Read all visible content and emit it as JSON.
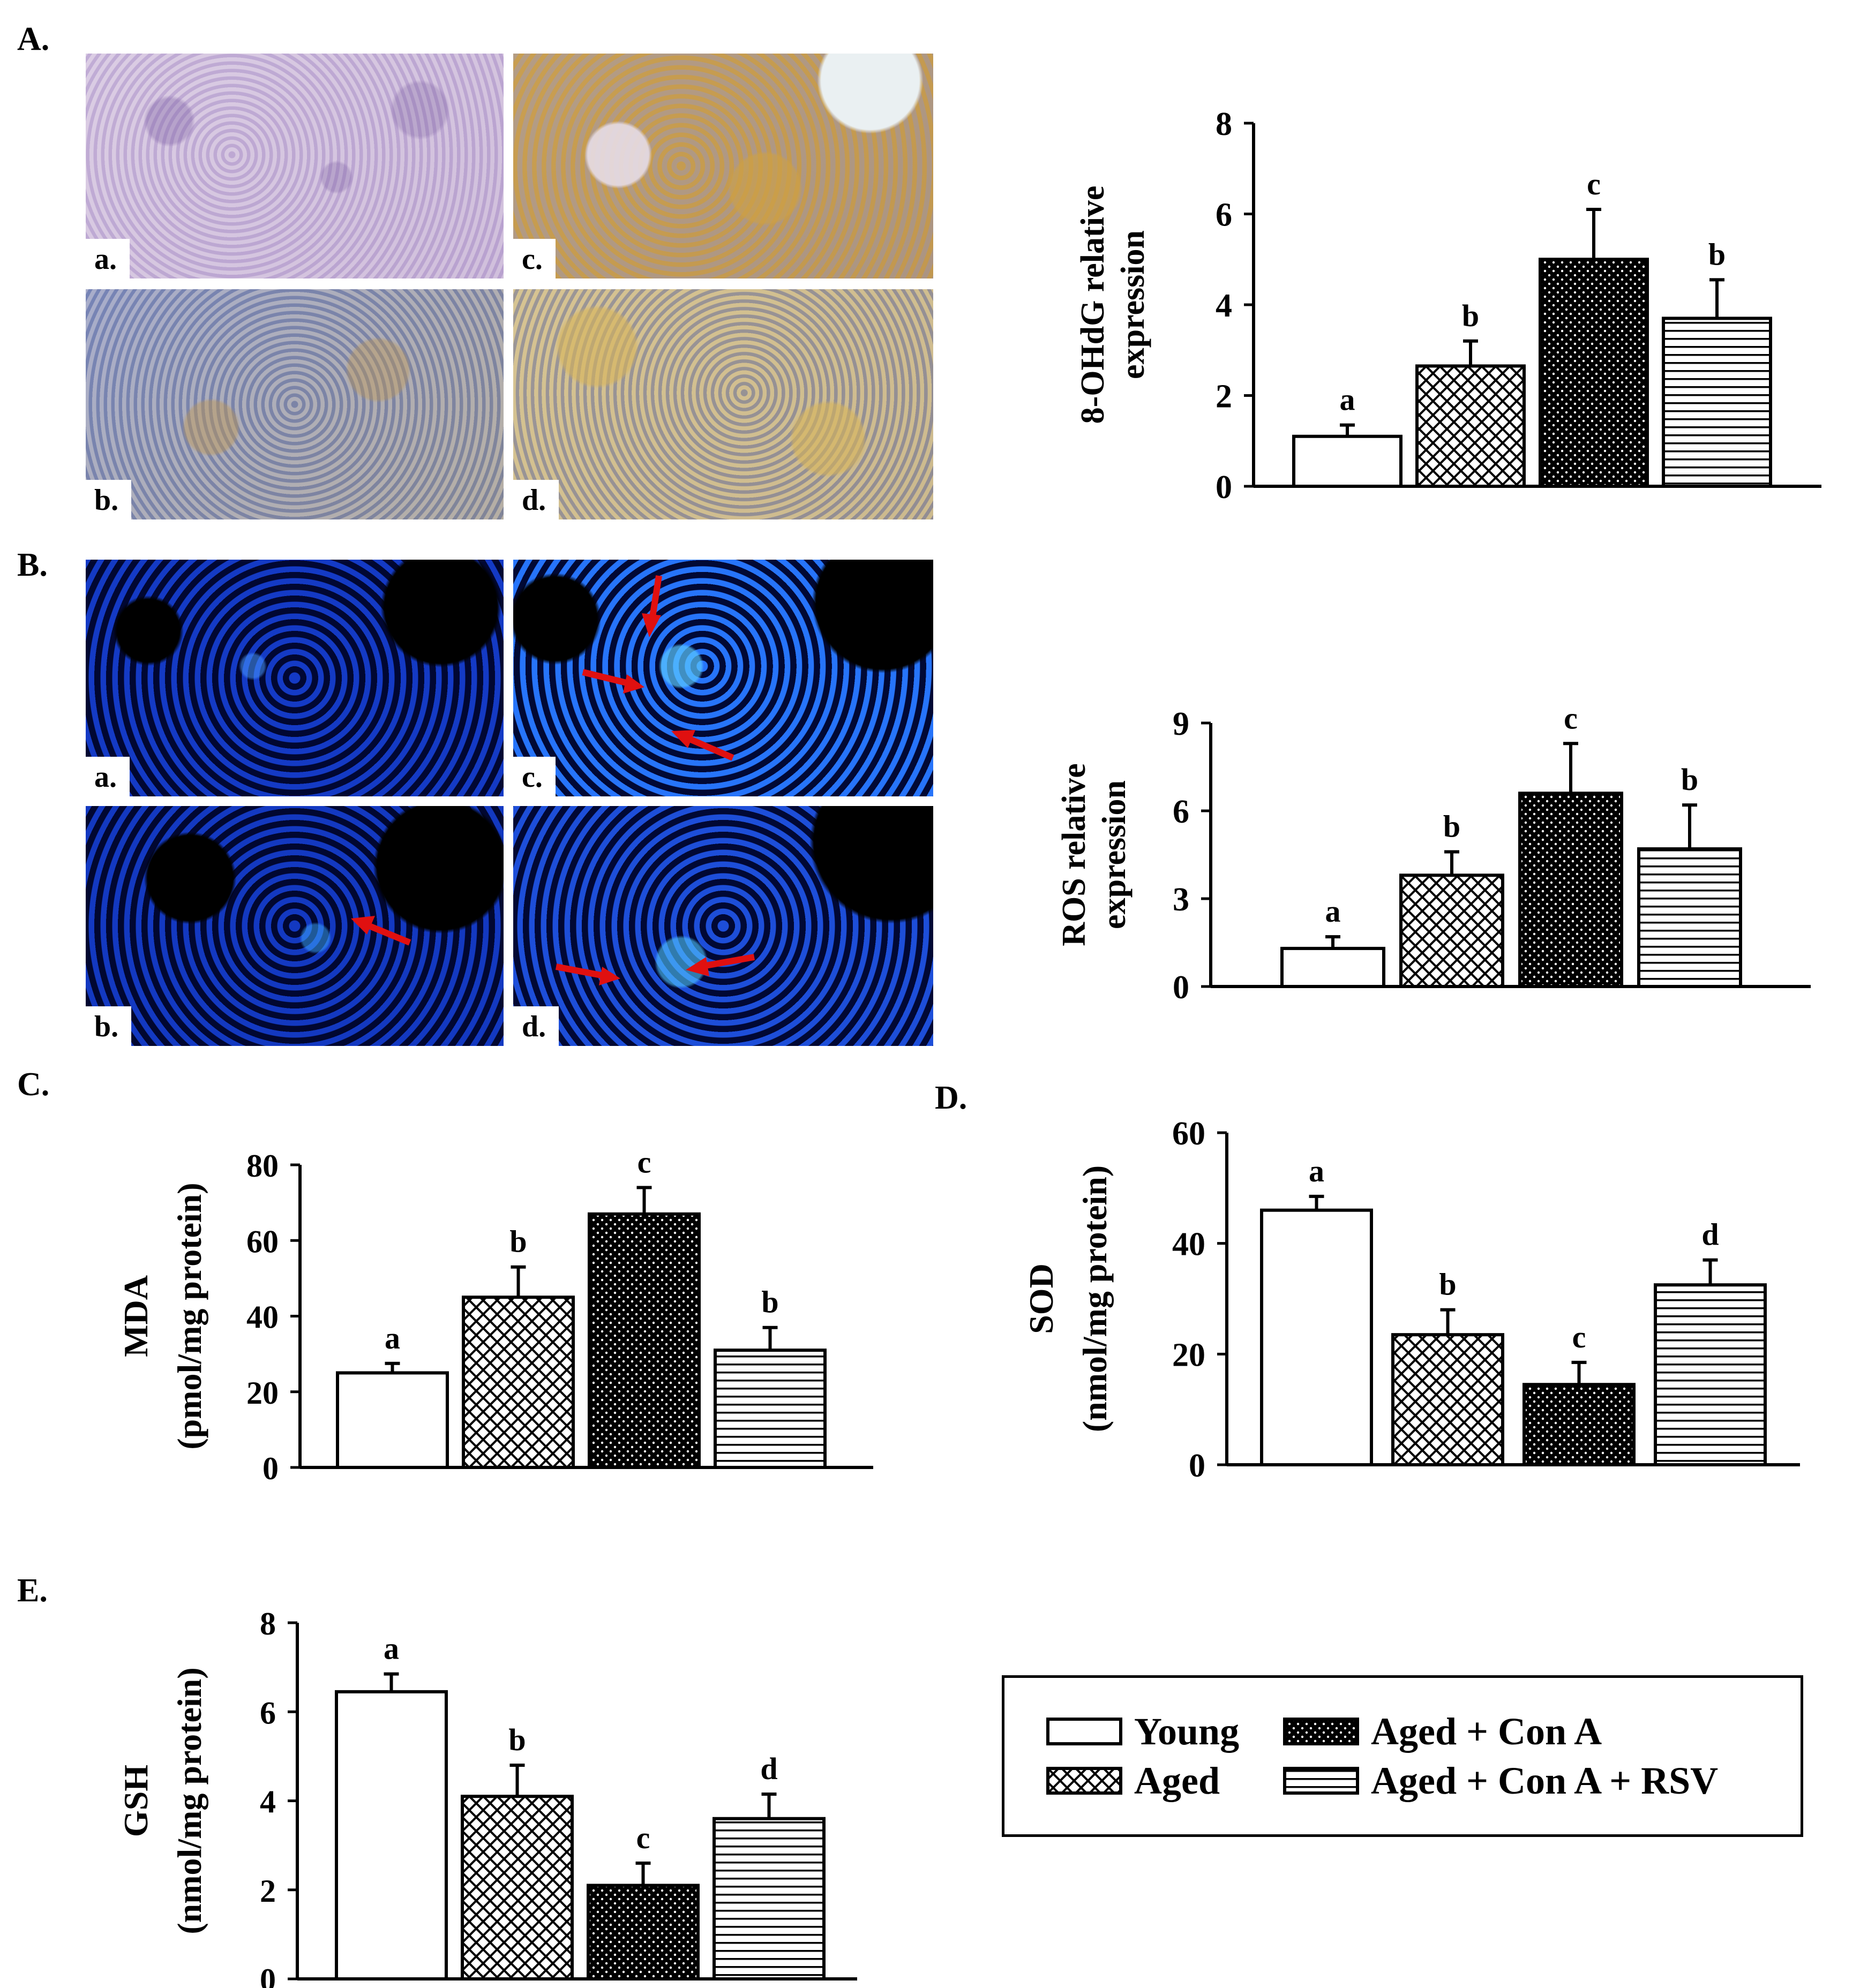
{
  "panels": {
    "A": {
      "letter": "A.",
      "sublabels": [
        "a.",
        "b.",
        "c.",
        "d."
      ]
    },
    "B": {
      "letter": "B.",
      "sublabels": [
        "a.",
        "b.",
        "c.",
        "d."
      ]
    },
    "C": {
      "letter": "C."
    },
    "D": {
      "letter": "D."
    },
    "E": {
      "letter": "E."
    }
  },
  "colors": {
    "bar_outline": "#000000",
    "arrow": "#e01010",
    "background": "#ffffff"
  },
  "patterns": [
    "open",
    "crosshatch",
    "dotted",
    "horizontal-lines"
  ],
  "chart_data": [
    {
      "id": "chart-8ohdg",
      "type": "bar",
      "categories": [
        "Young",
        "Aged",
        "Aged + Con A",
        "Aged + Con A + RSV"
      ],
      "values": [
        1.1,
        2.65,
        5.0,
        3.7
      ],
      "errors": [
        0.25,
        0.55,
        1.1,
        0.85
      ],
      "letters": [
        "a",
        "b",
        "c",
        "b"
      ],
      "ylabel_lines": [
        "8-OHdG  relative",
        "expression"
      ],
      "ylim": [
        0,
        8
      ],
      "yticks": [
        0,
        2,
        4,
        6,
        8
      ]
    },
    {
      "id": "chart-ros",
      "type": "bar",
      "categories": [
        "Young",
        "Aged",
        "Aged + Con A",
        "Aged + Con A + RSV"
      ],
      "values": [
        1.3,
        3.8,
        6.6,
        4.7
      ],
      "errors": [
        0.4,
        0.8,
        1.7,
        1.5
      ],
      "letters": [
        "a",
        "b",
        "c",
        "b"
      ],
      "ylabel_lines": [
        "ROS relative",
        "expression"
      ],
      "ylim": [
        0,
        9
      ],
      "yticks": [
        0,
        3,
        6,
        9
      ]
    },
    {
      "id": "chart-mda",
      "type": "bar",
      "categories": [
        "Young",
        "Aged",
        "Aged + Con A",
        "Aged + Con A + RSV"
      ],
      "values": [
        25,
        45,
        67,
        31
      ],
      "errors": [
        2.5,
        8,
        7,
        6
      ],
      "letters": [
        "a",
        "b",
        "c",
        "b"
      ],
      "ylabel_lines": [
        "MDA",
        "(pmol/mg  protein)"
      ],
      "ylim": [
        0,
        80
      ],
      "yticks": [
        0,
        20,
        40,
        60,
        80
      ]
    },
    {
      "id": "chart-sod",
      "type": "bar",
      "categories": [
        "Young",
        "Aged",
        "Aged + Con A",
        "Aged + Con A + RSV"
      ],
      "values": [
        46,
        23.5,
        14.5,
        32.5
      ],
      "errors": [
        2.5,
        4.5,
        4,
        4.5
      ],
      "letters": [
        "a",
        "b",
        "c",
        "d"
      ],
      "ylabel_lines": [
        "SOD",
        "(nmol/mg  protein)"
      ],
      "ylim": [
        0,
        60
      ],
      "yticks": [
        0,
        20,
        40,
        60
      ]
    },
    {
      "id": "chart-gsh",
      "type": "bar",
      "categories": [
        "Young",
        "Aged",
        "Aged + Con A",
        "Aged + Con A + RSV"
      ],
      "values": [
        6.45,
        4.1,
        2.1,
        3.6
      ],
      "errors": [
        0.4,
        0.7,
        0.5,
        0.55
      ],
      "letters": [
        "a",
        "b",
        "c",
        "d"
      ],
      "ylabel_lines": [
        "GSH",
        "(nmol/mg  protein)"
      ],
      "ylim": [
        0,
        8
      ],
      "yticks": [
        0,
        2,
        4,
        6,
        8
      ]
    }
  ],
  "legend": [
    {
      "label": "Young",
      "pattern": "open"
    },
    {
      "label": "Aged + Con A",
      "pattern": "dotted"
    },
    {
      "label": "Aged",
      "pattern": "crosshatch"
    },
    {
      "label": "Aged + Con A + RSV",
      "pattern": "horizontal-lines"
    }
  ]
}
